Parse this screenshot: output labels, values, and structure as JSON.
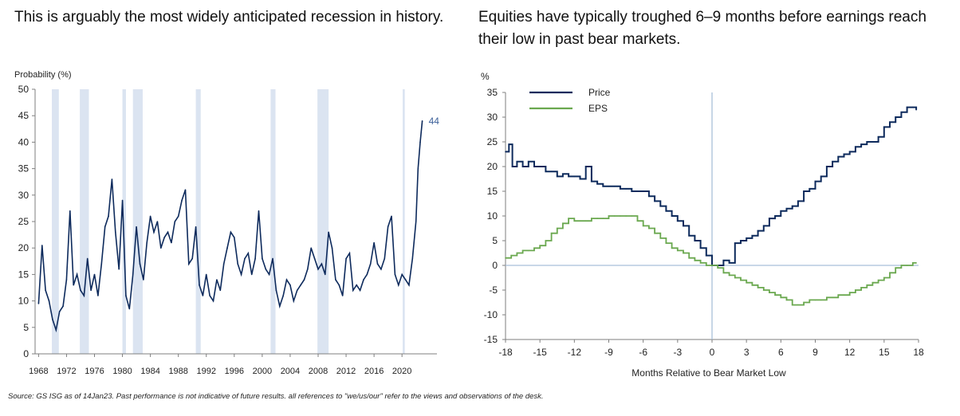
{
  "titles": {
    "left": "This is arguably the most widely anticipated recession in history.",
    "right": "Equities have typically troughed 6–9 months before earnings reach their low in past bear markets."
  },
  "source": "Source: GS ISG as of 14Jan23. Past performance is not indicative of future results.  all references to \"we/us/our\" refer to the views and observations of the desk.",
  "colors": {
    "recession_line": "#0d2a5c",
    "recession_band": "#dbe4f1",
    "price": "#0d2a5c",
    "eps": "#6aa84f",
    "zero_line": "#a9bfd9"
  },
  "chart_data": [
    {
      "type": "line",
      "title": "This is arguably the most widely anticipated recession in history.",
      "ylabel": "Probability (%)",
      "xlim": [
        1967.5,
        2025
      ],
      "ylim": [
        0,
        50
      ],
      "yticks": [
        0,
        5,
        10,
        15,
        20,
        25,
        30,
        35,
        40,
        45,
        50
      ],
      "xticks": [
        1968,
        1972,
        1976,
        1980,
        1984,
        1988,
        1992,
        1996,
        2000,
        2004,
        2008,
        2012,
        2016,
        2020
      ],
      "end_label": "44",
      "recession_bands": [
        [
          1969.9,
          1970.9
        ],
        [
          1973.9,
          1975.2
        ],
        [
          1980.0,
          1980.5
        ],
        [
          1981.5,
          1982.9
        ],
        [
          1990.5,
          1991.2
        ],
        [
          2001.2,
          2001.9
        ],
        [
          2007.9,
          2009.5
        ],
        [
          2020.1,
          2020.4
        ]
      ],
      "series": [
        {
          "x": [
            1968.0,
            1968.5,
            1969.0,
            1969.5,
            1970.0,
            1970.5,
            1971.0,
            1971.5,
            1972.0,
            1972.5,
            1973.0,
            1973.5,
            1974.0,
            1974.5,
            1975.0,
            1975.5,
            1976.0,
            1976.5,
            1977.0,
            1977.5,
            1978.0,
            1978.5,
            1979.0,
            1979.5,
            1980.0,
            1980.5,
            1981.0,
            1981.5,
            1982.0,
            1982.5,
            1983.0,
            1983.5,
            1984.0,
            1984.5,
            1985.0,
            1985.5,
            1986.0,
            1986.5,
            1987.0,
            1987.5,
            1988.0,
            1988.5,
            1989.0,
            1989.5,
            1990.0,
            1990.5,
            1991.0,
            1991.5,
            1992.0,
            1992.5,
            1993.0,
            1993.5,
            1994.0,
            1994.5,
            1995.0,
            1995.5,
            1996.0,
            1996.5,
            1997.0,
            1997.5,
            1998.0,
            1998.5,
            1999.0,
            1999.5,
            2000.0,
            2000.5,
            2001.0,
            2001.5,
            2002.0,
            2002.5,
            2003.0,
            2003.5,
            2004.0,
            2004.5,
            2005.0,
            2005.5,
            2006.0,
            2006.5,
            2007.0,
            2007.5,
            2008.0,
            2008.5,
            2009.0,
            2009.5,
            2010.0,
            2010.5,
            2011.0,
            2011.5,
            2012.0,
            2012.5,
            2013.0,
            2013.5,
            2014.0,
            2014.5,
            2015.0,
            2015.5,
            2016.0,
            2016.5,
            2017.0,
            2017.5,
            2018.0,
            2018.5,
            2019.0,
            2019.5,
            2020.0,
            2020.5,
            2021.0,
            2021.5,
            2022.0,
            2022.3,
            2022.6,
            2022.9
          ],
          "values": [
            9.5,
            20.5,
            12,
            10,
            6.5,
            4.5,
            8,
            9,
            14,
            27,
            13,
            15,
            12,
            11,
            18,
            12,
            15,
            11,
            17,
            24,
            26,
            33,
            23,
            16,
            29,
            11,
            8.5,
            15,
            24,
            17,
            14,
            21,
            26,
            23,
            25,
            20,
            22,
            23,
            21,
            25,
            26,
            29,
            31,
            17,
            18,
            24,
            13,
            11,
            15,
            11,
            10,
            14,
            12,
            17,
            20,
            23,
            22,
            17,
            15,
            18,
            19,
            15,
            18,
            27,
            18,
            16,
            15,
            18,
            12,
            9,
            11,
            14,
            13,
            10,
            12,
            13,
            14,
            16,
            20,
            18,
            16,
            17,
            15,
            23,
            20,
            14,
            13,
            11,
            18,
            19,
            12,
            13,
            12,
            14,
            15,
            17,
            21,
            17,
            16,
            18,
            24,
            26,
            15,
            13,
            15,
            14,
            13,
            18,
            25,
            35,
            40,
            44
          ]
        }
      ]
    },
    {
      "type": "line",
      "title": "Equities have typically troughed 6–9 months before earnings reach their low in past bear markets.",
      "ylabel": "%",
      "xlabel": "Months Relative to Bear Market Low",
      "xlim": [
        -18,
        18
      ],
      "ylim": [
        -15,
        35
      ],
      "yticks": [
        -15,
        -10,
        -5,
        0,
        5,
        10,
        15,
        20,
        25,
        30,
        35
      ],
      "xticks": [
        -18,
        -15,
        -12,
        -9,
        -6,
        -3,
        0,
        3,
        6,
        9,
        12,
        15,
        18
      ],
      "legend_position": "top-left",
      "series": [
        {
          "name": "Price",
          "x": [
            -18,
            -17.7,
            -17.4,
            -17,
            -16.5,
            -16,
            -15.5,
            -15,
            -14.5,
            -14,
            -13.5,
            -13,
            -12.5,
            -12,
            -11.5,
            -11,
            -10.5,
            -10,
            -9.5,
            -9,
            -8.5,
            -8,
            -7.5,
            -7,
            -6.5,
            -6,
            -5.5,
            -5,
            -4.5,
            -4,
            -3.5,
            -3,
            -2.5,
            -2,
            -1.5,
            -1,
            -0.5,
            0,
            0.5,
            1,
            1.5,
            2,
            2.5,
            3,
            3.5,
            4,
            4.5,
            5,
            5.5,
            6,
            6.5,
            7,
            7.5,
            8,
            8.5,
            9,
            9.5,
            10,
            10.5,
            11,
            11.5,
            12,
            12.5,
            13,
            13.5,
            14,
            14.5,
            15,
            15.5,
            16,
            16.5,
            17,
            17.5,
            17.8
          ],
          "values": [
            23,
            24.5,
            20,
            21,
            20,
            21,
            20,
            20,
            19,
            19,
            18,
            18.5,
            18,
            18,
            17.5,
            20,
            17,
            16.5,
            16,
            16,
            16,
            15.5,
            15.5,
            15,
            15,
            15,
            14,
            13,
            12,
            11,
            10,
            9,
            8,
            6,
            5,
            3.5,
            2,
            0,
            0,
            1,
            0.5,
            4.5,
            5,
            5.5,
            6,
            7,
            8,
            9.5,
            10,
            11,
            11.5,
            12,
            13,
            15,
            15.5,
            17,
            18,
            20,
            21,
            22,
            22.5,
            23,
            24,
            24.5,
            25,
            25,
            26,
            28,
            29,
            30,
            31,
            32,
            32,
            31.5
          ]
        },
        {
          "name": "EPS",
          "x": [
            -18,
            -17.5,
            -17,
            -16.5,
            -16,
            -15.5,
            -15,
            -14.5,
            -14,
            -13.5,
            -13,
            -12.5,
            -12,
            -11.5,
            -11,
            -10.5,
            -10,
            -9.5,
            -9,
            -8.5,
            -8,
            -7.5,
            -7,
            -6.5,
            -6,
            -5.5,
            -5,
            -4.5,
            -4,
            -3.5,
            -3,
            -2.5,
            -2,
            -1.5,
            -1,
            -0.5,
            0,
            0.5,
            1,
            1.5,
            2,
            2.5,
            3,
            3.5,
            4,
            4.5,
            5,
            5.5,
            6,
            6.5,
            7,
            7.5,
            8,
            8.5,
            9,
            9.5,
            10,
            10.5,
            11,
            11.5,
            12,
            12.5,
            13,
            13.5,
            14,
            14.5,
            15,
            15.5,
            16,
            16.5,
            17,
            17.5,
            17.8
          ],
          "values": [
            1.5,
            2,
            2.5,
            3,
            3,
            3.5,
            4,
            5,
            6.5,
            7.5,
            8.5,
            9.5,
            9,
            9,
            9,
            9.5,
            9.5,
            9.5,
            10,
            10,
            10,
            10,
            10,
            9,
            8,
            7.5,
            6.5,
            5.5,
            4.5,
            3.5,
            3,
            2.5,
            1.5,
            1,
            0.5,
            0,
            0,
            -0.5,
            -1.5,
            -2,
            -2.5,
            -3,
            -3.5,
            -4,
            -4.5,
            -5,
            -5.5,
            -6,
            -6.5,
            -7,
            -8,
            -8,
            -7.5,
            -7,
            -7,
            -7,
            -6.5,
            -6.5,
            -6,
            -6,
            -5.5,
            -5,
            -4.5,
            -4,
            -3.5,
            -3,
            -2.5,
            -1.5,
            -0.5,
            0,
            0,
            0.5,
            0.5
          ]
        }
      ]
    }
  ]
}
